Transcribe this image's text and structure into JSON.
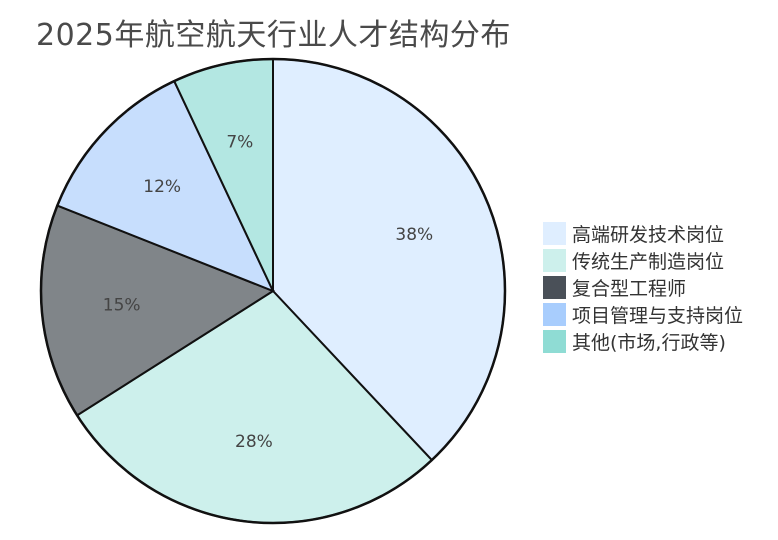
{
  "chart_data": {
    "type": "pie",
    "title": "2025年航空航天行业人才结构分布",
    "slices": [
      {
        "label": "高端研发技术岗位",
        "value": 38,
        "display": "38%",
        "color": "#dfeeff",
        "text_color": "#444444"
      },
      {
        "label": "传统生产制造岗位",
        "value": 28,
        "display": "28%",
        "color": "#cdf0ec",
        "text_color": "#444444"
      },
      {
        "label": "复合型工程师",
        "value": 15,
        "display": "15%",
        "color": "#808589",
        "text_color": "#444444",
        "legend_color": "#4a5058"
      },
      {
        "label": "项目管理与支持岗位",
        "value": 12,
        "display": "12%",
        "color": "#c7defd",
        "text_color": "#444444",
        "legend_color": "#a8cdfd"
      },
      {
        "label": "其他(市场,行政等)",
        "value": 7,
        "display": "7%",
        "color": "#b3e7e2",
        "text_color": "#444444",
        "legend_color": "#8fdcd4"
      }
    ],
    "legend_position": "right",
    "start_angle": "top",
    "direction": "clockwise"
  }
}
